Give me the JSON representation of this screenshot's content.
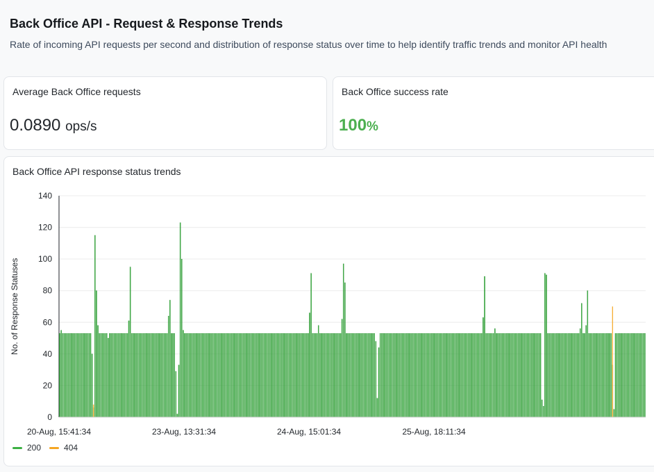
{
  "header": {
    "title": "Back Office API - Request & Response Trends",
    "subtitle": "Rate of incoming API requests per second and distribution of response status over time to help identify traffic trends and monitor API health"
  },
  "metrics": {
    "avg_requests": {
      "label": "Average Back Office requests",
      "value": "0.0890",
      "unit": "ops/s"
    },
    "success_rate": {
      "label": "Back Office success rate",
      "value": "100",
      "unit": "%"
    }
  },
  "colors": {
    "status_200": "#3cb043",
    "status_200_edge": "#2a8a30",
    "status_404": "#f5a623",
    "accent_success": "#4caf50"
  },
  "chart_data": {
    "type": "bar",
    "title": "Back Office API response status trends",
    "ylabel": "No. of Response Statuses",
    "xlabel": "",
    "ylim": [
      0,
      140
    ],
    "yticks": [
      0,
      20,
      40,
      60,
      80,
      100,
      120,
      140
    ],
    "grid": true,
    "legend_placement": "bottom-left",
    "x_tick_labels": [
      "20-Aug, 15:41:34",
      "23-Aug, 13:31:34",
      "24-Aug, 15:01:34",
      "25-Aug, 18:11:34"
    ],
    "x_tick_positions": [
      0,
      85,
      170,
      255
    ],
    "series": [
      {
        "name": "200",
        "values": [
          53,
          55,
          53,
          53,
          53,
          53,
          53,
          53,
          53,
          53,
          53,
          53,
          53,
          53,
          53,
          53,
          53,
          53,
          53,
          53,
          53,
          53,
          40,
          6,
          115,
          80,
          58,
          53,
          53,
          53,
          53,
          53,
          53,
          50,
          53,
          53,
          53,
          53,
          53,
          53,
          53,
          53,
          53,
          53,
          53,
          53,
          53,
          61,
          95,
          53,
          53,
          53,
          53,
          53,
          53,
          53,
          53,
          53,
          53,
          53,
          53,
          53,
          53,
          53,
          53,
          53,
          53,
          53,
          53,
          53,
          53,
          53,
          53,
          53,
          64,
          74,
          53,
          53,
          53,
          29,
          2,
          33,
          123,
          100,
          55,
          53,
          53,
          53,
          53,
          53,
          53,
          53,
          53,
          53,
          53,
          53,
          53,
          53,
          53,
          53,
          53,
          53,
          53,
          53,
          53,
          53,
          53,
          53,
          53,
          53,
          53,
          53,
          53,
          53,
          53,
          53,
          53,
          53,
          53,
          53,
          53,
          53,
          53,
          53,
          53,
          53,
          53,
          53,
          53,
          53,
          53,
          53,
          53,
          53,
          53,
          53,
          53,
          53,
          53,
          53,
          53,
          53,
          53,
          53,
          53,
          53,
          53,
          53,
          53,
          53,
          53,
          53,
          53,
          53,
          53,
          53,
          53,
          53,
          53,
          53,
          53,
          53,
          53,
          53,
          53,
          53,
          53,
          53,
          53,
          53,
          66,
          91,
          53,
          53,
          53,
          53,
          58,
          53,
          53,
          53,
          53,
          53,
          53,
          53,
          53,
          53,
          53,
          53,
          53,
          53,
          53,
          53,
          62,
          97,
          85,
          53,
          53,
          53,
          53,
          53,
          53,
          53,
          53,
          53,
          53,
          53,
          53,
          53,
          53,
          53,
          53,
          53,
          53,
          53,
          53,
          48,
          12,
          44,
          53,
          53,
          53,
          53,
          53,
          53,
          53,
          53,
          53,
          53,
          53,
          53,
          53,
          53,
          53,
          53,
          53,
          53,
          53,
          53,
          53,
          53,
          53,
          53,
          53,
          53,
          53,
          53,
          53,
          53,
          53,
          53,
          53,
          53,
          53,
          53,
          53,
          53,
          53,
          53,
          53,
          53,
          53,
          53,
          53,
          53,
          53,
          53,
          53,
          53,
          53,
          53,
          53,
          53,
          53,
          53,
          53,
          53,
          53,
          53,
          53,
          53,
          53,
          53,
          53,
          53,
          53,
          53,
          53,
          53,
          63,
          89,
          53,
          53,
          53,
          53,
          53,
          53,
          56,
          53,
          53,
          53,
          53,
          53,
          53,
          53,
          53,
          53,
          53,
          53,
          53,
          53,
          53,
          53,
          53,
          53,
          53,
          53,
          53,
          53,
          53,
          53,
          53,
          53,
          53,
          53,
          53,
          53,
          53,
          53,
          11,
          7,
          91,
          90,
          53,
          53,
          53,
          53,
          53,
          53,
          53,
          53,
          53,
          53,
          53,
          53,
          53,
          53,
          53,
          53,
          53,
          53,
          53,
          53,
          53,
          53,
          56,
          72,
          53,
          53,
          58,
          80,
          53,
          53,
          53,
          53,
          53,
          53,
          53,
          53,
          53,
          53,
          53,
          53,
          53,
          53,
          53,
          53,
          33,
          5,
          53,
          53,
          53,
          53,
          53,
          53,
          53,
          53,
          53,
          53,
          53,
          53,
          53,
          53,
          53,
          53,
          53,
          53,
          53,
          53,
          53
        ]
      },
      {
        "name": "404",
        "values": [
          0,
          0,
          0,
          0,
          0,
          0,
          0,
          0,
          0,
          0,
          0,
          0,
          0,
          0,
          0,
          0,
          0,
          0,
          0,
          0,
          0,
          0,
          0,
          8,
          0,
          0,
          0,
          0,
          0,
          0,
          0,
          0,
          0,
          0,
          0,
          0,
          0,
          0,
          0,
          0,
          0,
          0,
          0,
          0,
          0,
          0,
          0,
          0,
          0,
          0,
          0,
          0,
          0,
          0,
          0,
          0,
          0,
          0,
          0,
          0,
          0,
          0,
          0,
          0,
          0,
          0,
          0,
          0,
          0,
          0,
          0,
          0,
          0,
          0,
          0,
          0,
          0,
          0,
          0,
          0,
          0,
          0,
          0,
          0,
          0,
          0,
          0,
          0,
          0,
          0,
          0,
          0,
          0,
          0,
          0,
          0,
          0,
          0,
          0,
          0,
          0,
          0,
          0,
          0,
          0,
          0,
          0,
          0,
          0,
          0,
          0,
          0,
          0,
          0,
          0,
          0,
          0,
          0,
          0,
          0,
          0,
          0,
          0,
          0,
          0,
          0,
          0,
          0,
          0,
          0,
          0,
          0,
          0,
          0,
          0,
          0,
          0,
          0,
          0,
          0,
          0,
          0,
          0,
          0,
          0,
          0,
          0,
          0,
          0,
          0,
          0,
          0,
          0,
          0,
          0,
          0,
          0,
          0,
          0,
          0,
          0,
          0,
          0,
          0,
          0,
          0,
          0,
          0,
          0,
          0,
          0,
          0,
          0,
          0,
          0,
          0,
          0,
          0,
          0,
          0,
          0,
          0,
          0,
          0,
          0,
          0,
          0,
          0,
          0,
          0,
          0,
          0,
          0,
          0,
          0,
          0,
          0,
          0,
          0,
          0,
          0,
          0,
          0,
          0,
          0,
          0,
          0,
          0,
          0,
          0,
          0,
          0,
          0,
          0,
          0,
          0,
          0,
          0,
          0,
          0,
          0,
          0,
          0,
          0,
          0,
          0,
          0,
          0,
          0,
          0,
          0,
          0,
          0,
          0,
          0,
          0,
          0,
          0,
          0,
          0,
          0,
          0,
          0,
          0,
          0,
          0,
          0,
          0,
          0,
          0,
          0,
          0,
          0,
          0,
          0,
          0,
          0,
          0,
          0,
          0,
          0,
          0,
          0,
          0,
          0,
          0,
          0,
          0,
          0,
          0,
          0,
          0,
          0,
          0,
          0,
          0,
          0,
          0,
          0,
          0,
          0,
          0,
          0,
          0,
          0,
          0,
          0,
          0,
          0,
          0,
          0,
          0,
          0,
          0,
          0,
          0,
          0,
          0,
          0,
          0,
          0,
          0,
          0,
          0,
          0,
          0,
          0,
          0,
          0,
          0,
          0,
          0,
          0,
          0,
          0,
          0,
          0,
          0,
          0,
          0,
          0,
          0,
          0,
          0,
          0,
          0,
          0,
          0,
          0,
          0,
          0,
          0,
          0,
          0,
          0,
          0,
          0,
          0,
          0,
          0,
          0,
          0,
          0,
          0,
          0,
          0,
          0,
          0,
          0,
          0,
          0,
          0,
          0,
          0,
          0,
          0,
          0,
          0,
          0,
          0,
          0,
          0,
          0,
          0,
          0,
          0,
          0,
          0,
          0,
          0,
          0,
          0,
          0,
          0,
          0,
          0,
          70,
          0,
          0,
          0,
          0,
          0,
          0,
          0,
          0,
          0,
          0,
          0,
          0,
          0,
          0,
          0,
          0,
          0,
          0,
          0,
          0,
          0,
          0,
          0,
          0
        ]
      }
    ]
  }
}
